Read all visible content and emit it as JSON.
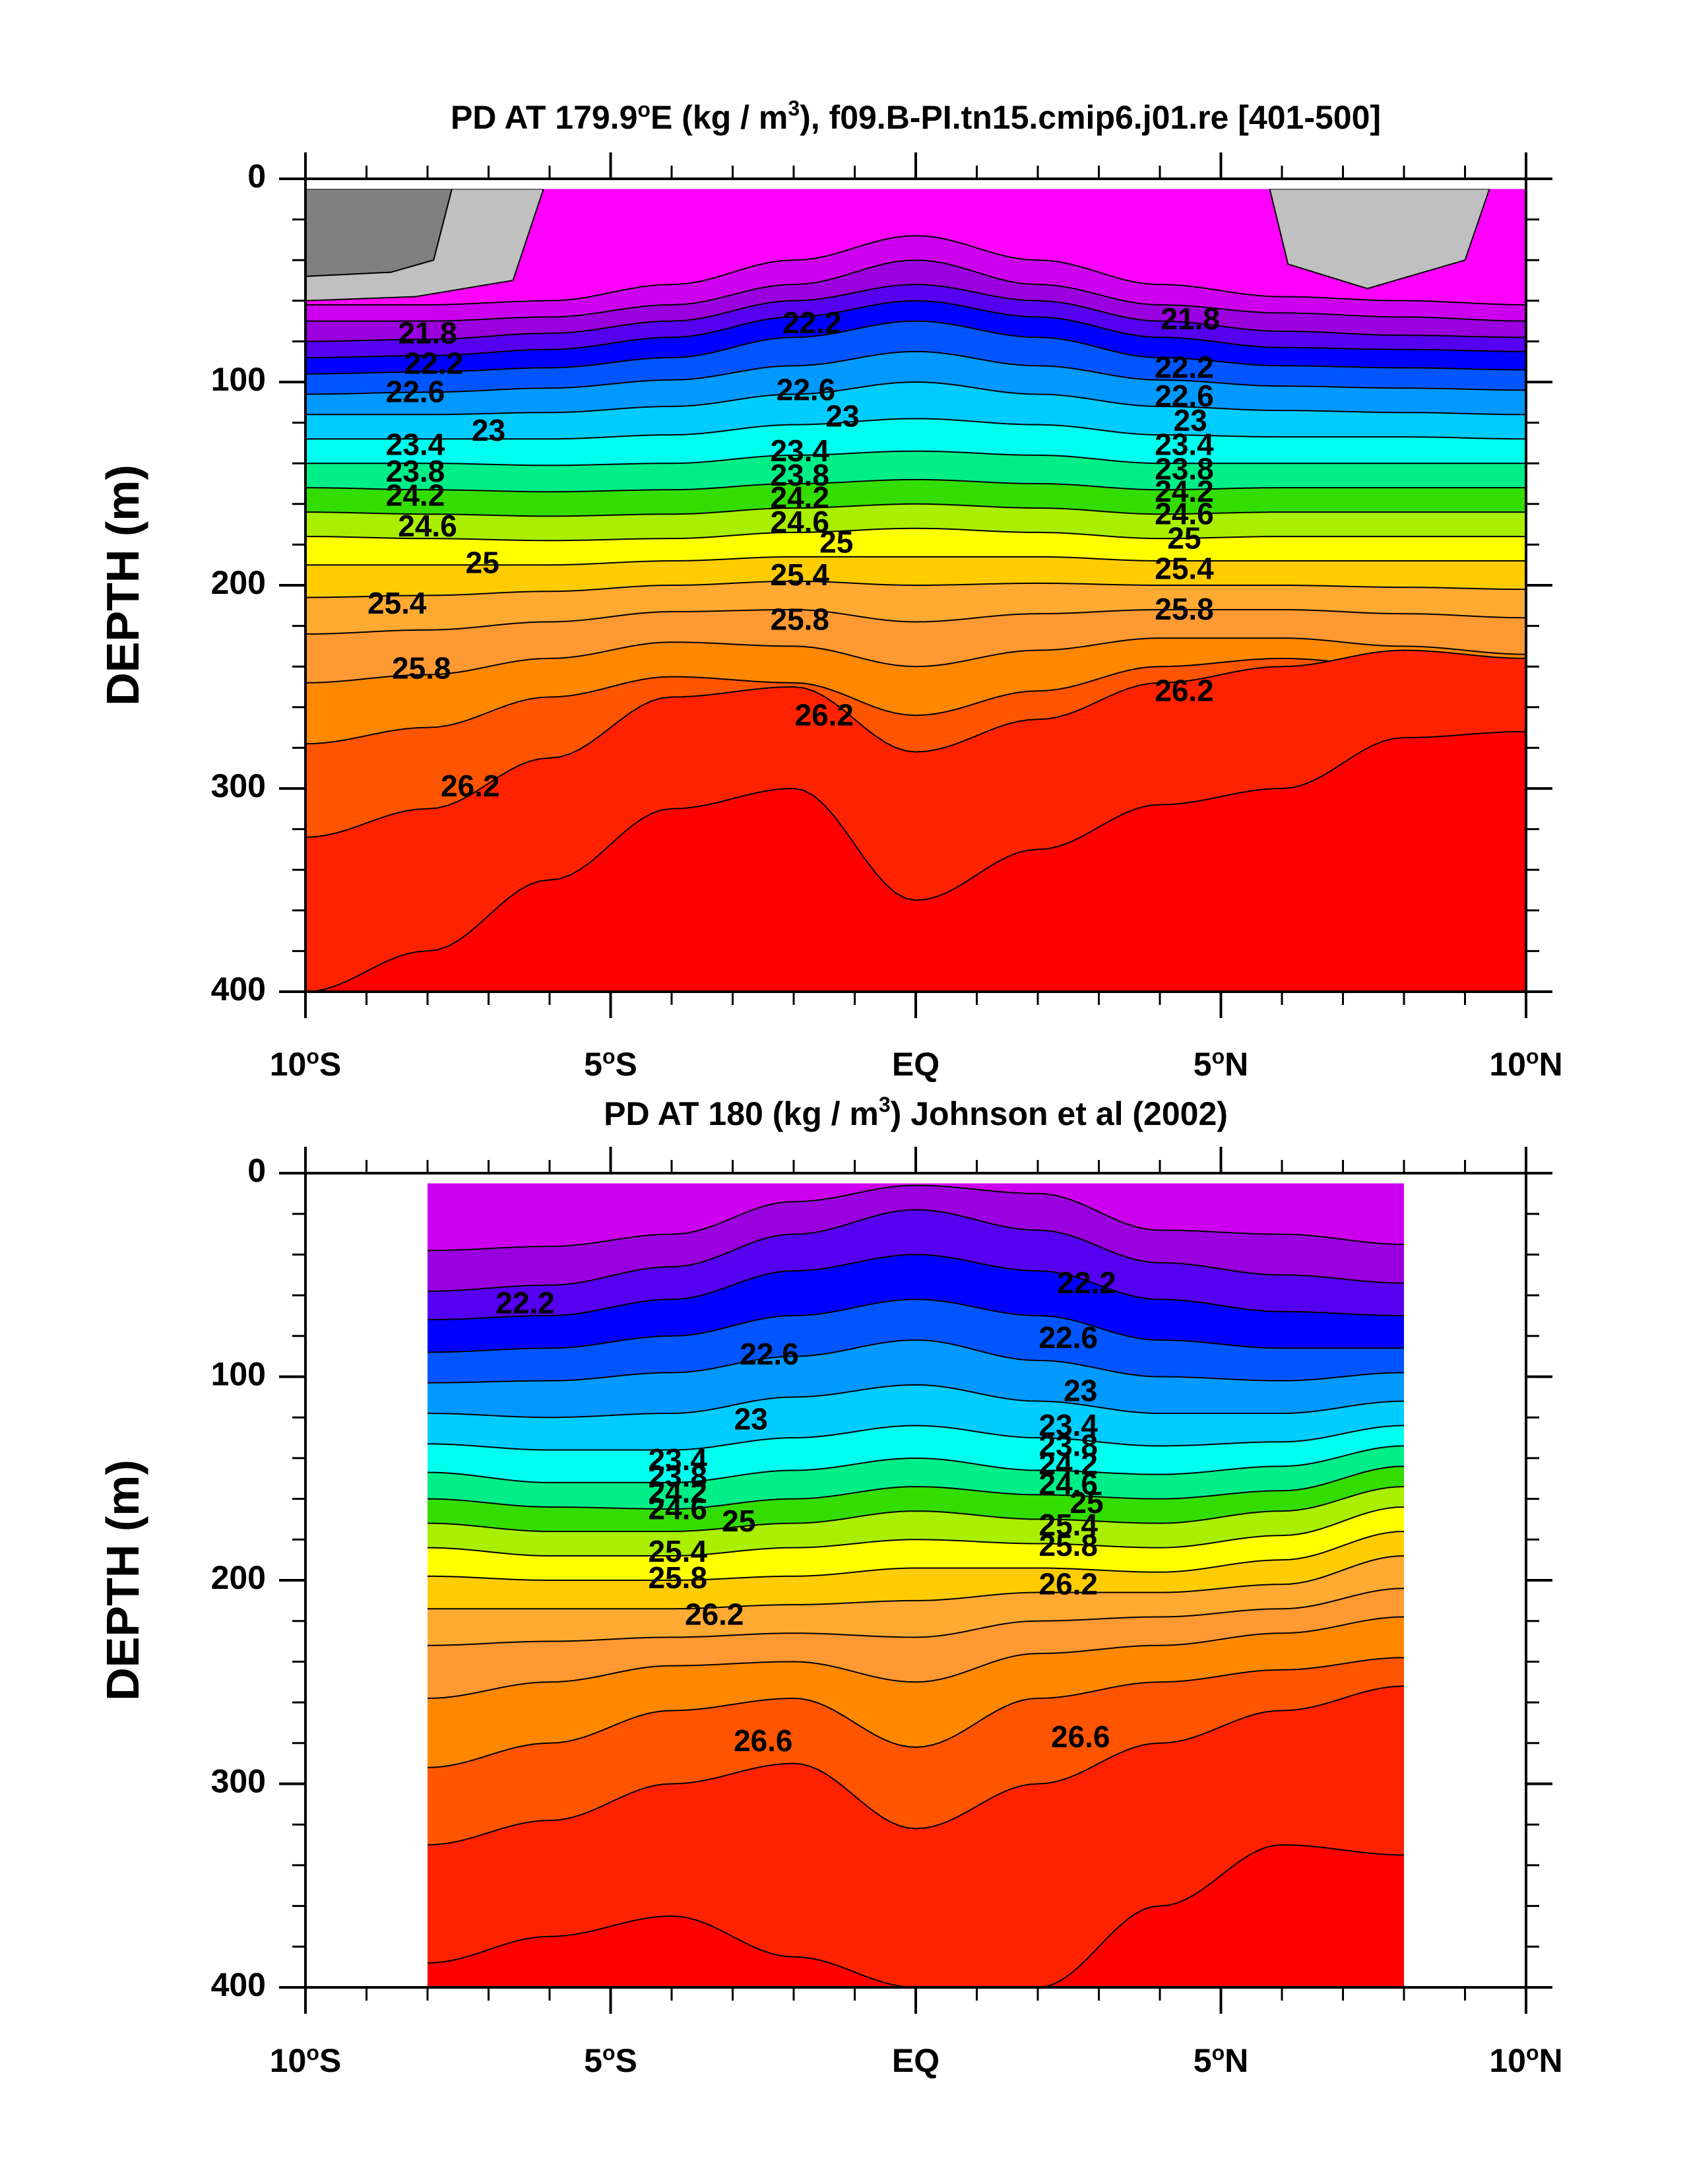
{
  "chart_data": [
    {
      "type": "contour",
      "title": "PD AT 179.9°E (kg / m³), f09.B-PI.tn15.cmip6.j01.re [401-500]",
      "title_parts": {
        "pre": "PD AT 179.9",
        "deg": "o",
        "mid": "E (kg / m",
        "sup": "3",
        "post": "), f09.B-PI.tn15.cmip6.j01.re [401-500]"
      },
      "ylabel": "DEPTH (m)",
      "x_ticks": [
        {
          "lat": -10,
          "num": "10",
          "deg": "o",
          "hemi": "S"
        },
        {
          "lat": -5,
          "num": "5",
          "deg": "o",
          "hemi": "S"
        },
        {
          "lat": 0,
          "num": "EQ",
          "deg": "",
          "hemi": ""
        },
        {
          "lat": 5,
          "num": "5",
          "deg": "o",
          "hemi": "N"
        },
        {
          "lat": 10,
          "num": "10",
          "deg": "o",
          "hemi": "N"
        }
      ],
      "y_ticks": [
        0,
        100,
        200,
        300,
        400
      ],
      "xlim": [
        -10,
        10
      ],
      "ylim": [
        400,
        0
      ],
      "data_lat_range": [
        -10,
        10
      ],
      "contour_levels": [
        21.0,
        21.4,
        21.8,
        22.2,
        22.6,
        23.0,
        23.4,
        23.8,
        24.2,
        24.6,
        25.0,
        25.4,
        25.8,
        26.2
      ],
      "contour_labels": [
        {
          "text": "21.8",
          "lat": -8.0,
          "depth": 77
        },
        {
          "text": "22.2",
          "lat": -7.9,
          "depth": 92
        },
        {
          "text": "22.6",
          "lat": -8.2,
          "depth": 106
        },
        {
          "text": "23",
          "lat": -7.0,
          "depth": 125
        },
        {
          "text": "23.4",
          "lat": -8.2,
          "depth": 132
        },
        {
          "text": "23.8",
          "lat": -8.2,
          "depth": 145
        },
        {
          "text": "24.2",
          "lat": -8.2,
          "depth": 157
        },
        {
          "text": "24.6",
          "lat": -8.0,
          "depth": 172
        },
        {
          "text": "25",
          "lat": -7.1,
          "depth": 190
        },
        {
          "text": "25.4",
          "lat": -8.5,
          "depth": 210
        },
        {
          "text": "25.8",
          "lat": -8.1,
          "depth": 242
        },
        {
          "text": "26.2",
          "lat": -7.3,
          "depth": 300
        },
        {
          "text": "22.2",
          "lat": -1.7,
          "depth": 72
        },
        {
          "text": "22.6",
          "lat": -1.8,
          "depth": 105
        },
        {
          "text": "23",
          "lat": -1.2,
          "depth": 118
        },
        {
          "text": "23.4",
          "lat": -1.9,
          "depth": 135
        },
        {
          "text": "23.8",
          "lat": -1.9,
          "depth": 147
        },
        {
          "text": "24.2",
          "lat": -1.9,
          "depth": 158
        },
        {
          "text": "24.6",
          "lat": -1.9,
          "depth": 170
        },
        {
          "text": "25",
          "lat": -1.3,
          "depth": 180
        },
        {
          "text": "25.4",
          "lat": -1.9,
          "depth": 196
        },
        {
          "text": "25.8",
          "lat": -1.9,
          "depth": 218
        },
        {
          "text": "26.2",
          "lat": -1.5,
          "depth": 265
        },
        {
          "text": "21.8",
          "lat": 4.5,
          "depth": 70
        },
        {
          "text": "22.2",
          "lat": 4.4,
          "depth": 94
        },
        {
          "text": "22.6",
          "lat": 4.4,
          "depth": 108
        },
        {
          "text": "23",
          "lat": 4.5,
          "depth": 120
        },
        {
          "text": "23.4",
          "lat": 4.4,
          "depth": 132
        },
        {
          "text": "23.8",
          "lat": 4.4,
          "depth": 144
        },
        {
          "text": "24.2",
          "lat": 4.4,
          "depth": 155
        },
        {
          "text": "24.6",
          "lat": 4.4,
          "depth": 166
        },
        {
          "text": "25",
          "lat": 4.4,
          "depth": 178
        },
        {
          "text": "25.4",
          "lat": 4.4,
          "depth": 193
        },
        {
          "text": "25.8",
          "lat": 4.4,
          "depth": 213
        },
        {
          "text": "26.2",
          "lat": 4.4,
          "depth": 253
        }
      ],
      "colorbar_visible": false
    },
    {
      "type": "contour",
      "title": "PD AT 180 (kg / m³) Johnson et al (2002)",
      "title_parts": {
        "pre": "PD AT 180 (kg / m",
        "deg": "",
        "mid": "",
        "sup": "3",
        "post": ") Johnson et al (2002)"
      },
      "ylabel": "DEPTH (m)",
      "x_ticks": [
        {
          "lat": -10,
          "num": "10",
          "deg": "o",
          "hemi": "S"
        },
        {
          "lat": -5,
          "num": "5",
          "deg": "o",
          "hemi": "S"
        },
        {
          "lat": 0,
          "num": "EQ",
          "deg": "",
          "hemi": ""
        },
        {
          "lat": 5,
          "num": "5",
          "deg": "o",
          "hemi": "N"
        },
        {
          "lat": 10,
          "num": "10",
          "deg": "o",
          "hemi": "N"
        }
      ],
      "y_ticks": [
        0,
        100,
        200,
        300,
        400
      ],
      "xlim": [
        -10,
        10
      ],
      "ylim": [
        400,
        0
      ],
      "data_lat_range": [
        -8,
        8
      ],
      "contour_levels": [
        21.8,
        22.2,
        22.6,
        23.0,
        23.4,
        23.8,
        24.2,
        24.6,
        25.0,
        25.4,
        25.8,
        26.2,
        26.6
      ],
      "contour_labels": [
        {
          "text": "22.2",
          "lat": -6.4,
          "depth": 65
        },
        {
          "text": "22.6",
          "lat": -2.4,
          "depth": 90
        },
        {
          "text": "23",
          "lat": -2.7,
          "depth": 122
        },
        {
          "text": "23.4",
          "lat": -3.9,
          "depth": 142
        },
        {
          "text": "23.8",
          "lat": -3.9,
          "depth": 150
        },
        {
          "text": "24.2",
          "lat": -3.9,
          "depth": 158
        },
        {
          "text": "24.6",
          "lat": -3.9,
          "depth": 166
        },
        {
          "text": "25",
          "lat": -2.9,
          "depth": 172
        },
        {
          "text": "25.4",
          "lat": -3.9,
          "depth": 187
        },
        {
          "text": "25.8",
          "lat": -3.9,
          "depth": 200
        },
        {
          "text": "26.2",
          "lat": -3.3,
          "depth": 218
        },
        {
          "text": "26.6",
          "lat": -2.5,
          "depth": 280
        },
        {
          "text": "22.2",
          "lat": 2.8,
          "depth": 55
        },
        {
          "text": "22.6",
          "lat": 2.5,
          "depth": 82
        },
        {
          "text": "23",
          "lat": 2.7,
          "depth": 108
        },
        {
          "text": "23.4",
          "lat": 2.5,
          "depth": 125
        },
        {
          "text": "23.8",
          "lat": 2.5,
          "depth": 135
        },
        {
          "text": "24.2",
          "lat": 2.5,
          "depth": 144
        },
        {
          "text": "24.6",
          "lat": 2.5,
          "depth": 154
        },
        {
          "text": "25",
          "lat": 2.8,
          "depth": 163
        },
        {
          "text": "25.4",
          "lat": 2.5,
          "depth": 174
        },
        {
          "text": "25.8",
          "lat": 2.5,
          "depth": 184
        },
        {
          "text": "26.2",
          "lat": 2.5,
          "depth": 203
        },
        {
          "text": "26.6",
          "lat": 2.7,
          "depth": 278
        }
      ],
      "colorbar_visible": false
    }
  ],
  "colors": {
    "land_dark": "#808080",
    "land_light": "#c0c0c0",
    "ramp": [
      "#ff00ff",
      "#cc00ee",
      "#9900dd",
      "#5500ee",
      "#0000ff",
      "#0055ff",
      "#0099ff",
      "#00ccff",
      "#00ffee",
      "#00ee88",
      "#33dd00",
      "#aaee00",
      "#ffff00",
      "#ffcc00",
      "#ffaa33",
      "#ff9933",
      "#ff8800",
      "#ff5500",
      "#ff2200",
      "#ff0000",
      "#dd0000",
      "#cc0000",
      "#bb0000"
    ]
  }
}
